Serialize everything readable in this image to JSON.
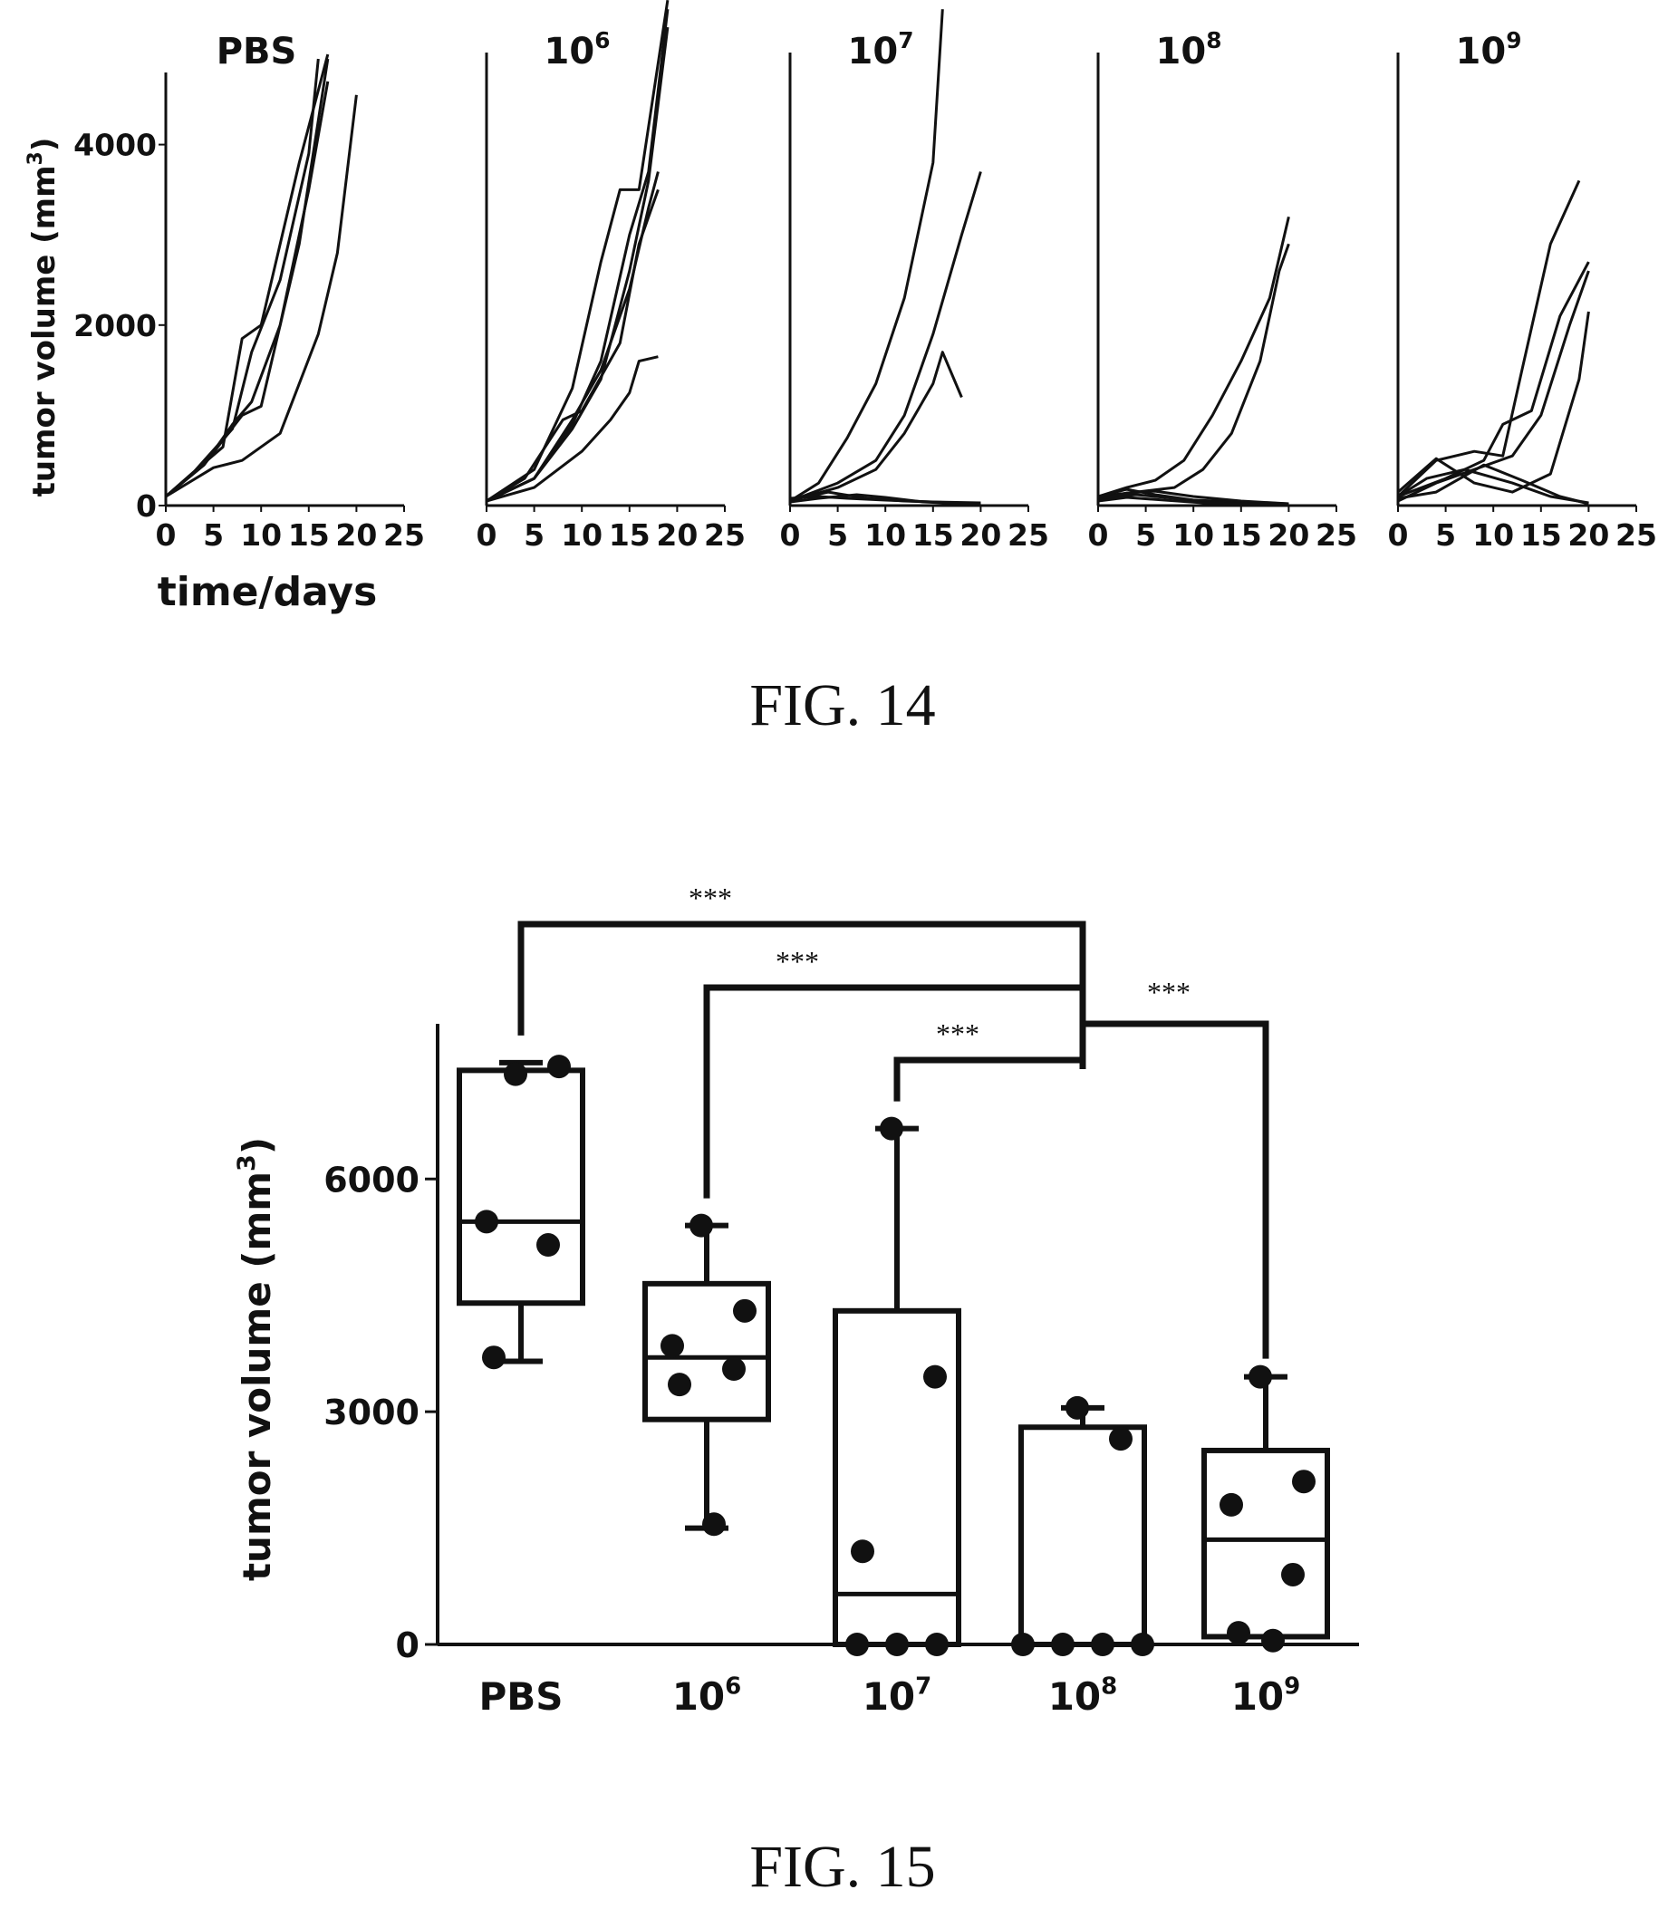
{
  "figures": [
    {
      "caption": "FIG. 14"
    },
    {
      "caption": "FIG. 15"
    }
  ],
  "colors": {
    "ink": "#111111",
    "background": "#ffffff"
  },
  "chart_data": [
    {
      "id": "fig14",
      "type": "line",
      "ylabel": "tumor volume (mm",
      "ylabel_sup": "3",
      "ylabel_close": ")",
      "xlabel": "time/days",
      "ylim": [
        0,
        5000
      ],
      "xlim": [
        0,
        25
      ],
      "xticks": [
        "0",
        "5",
        "10",
        "15",
        "20",
        "25"
      ],
      "yticks": [
        {
          "value": 0,
          "label": "0"
        },
        {
          "value": 2000,
          "label": "2000"
        },
        {
          "value": 4000,
          "label": "4000"
        }
      ],
      "grid": false,
      "panels": [
        {
          "title_base": "PBS",
          "title_sup": "",
          "series": [
            [
              [
                0,
                100
              ],
              [
                3,
                380
              ],
              [
                6,
                650
              ],
              [
                8,
                1850
              ],
              [
                10,
                2000
              ],
              [
                14,
                3800
              ],
              [
                17,
                5000
              ]
            ],
            [
              [
                0,
                100
              ],
              [
                3,
                380
              ],
              [
                7,
                850
              ],
              [
                9,
                1700
              ],
              [
                12,
                2500
              ],
              [
                15,
                3900
              ],
              [
                16,
                4950
              ]
            ],
            [
              [
                0,
                100
              ],
              [
                4,
                450
              ],
              [
                8,
                1000
              ],
              [
                10,
                1100
              ],
              [
                14,
                2900
              ],
              [
                17,
                4950
              ]
            ],
            [
              [
                0,
                100
              ],
              [
                4,
                450
              ],
              [
                7,
                900
              ],
              [
                9,
                1150
              ],
              [
                12,
                2000
              ],
              [
                15,
                3500
              ],
              [
                17,
                4700
              ]
            ],
            [
              [
                0,
                100
              ],
              [
                5,
                420
              ],
              [
                8,
                500
              ],
              [
                12,
                800
              ],
              [
                16,
                1900
              ],
              [
                18,
                2800
              ],
              [
                20,
                4550
              ]
            ]
          ]
        },
        {
          "title_base": "10",
          "title_sup": "6",
          "series": [
            [
              [
                0,
                50
              ],
              [
                5,
                400
              ],
              [
                9,
                1300
              ],
              [
                12,
                2700
              ],
              [
                14,
                3500
              ],
              [
                16,
                3500
              ],
              [
                19,
                5600
              ]
            ],
            [
              [
                0,
                50
              ],
              [
                5,
                300
              ],
              [
                9,
                900
              ],
              [
                12,
                1600
              ],
              [
                15,
                3000
              ],
              [
                17,
                3700
              ],
              [
                19,
                5500
              ]
            ],
            [
              [
                0,
                50
              ],
              [
                5,
                300
              ],
              [
                9,
                850
              ],
              [
                12,
                1400
              ],
              [
                15,
                2600
              ],
              [
                17,
                3600
              ],
              [
                19,
                5300
              ]
            ],
            [
              [
                0,
                50
              ],
              [
                5,
                300
              ],
              [
                9,
                950
              ],
              [
                12,
                1500
              ],
              [
                15,
                2400
              ],
              [
                17,
                3300
              ],
              [
                18,
                3700
              ]
            ],
            [
              [
                0,
                50
              ],
              [
                4,
                300
              ],
              [
                8,
                950
              ],
              [
                10,
                1050
              ],
              [
                14,
                1800
              ],
              [
                16,
                2900
              ],
              [
                18,
                3500
              ]
            ],
            [
              [
                0,
                50
              ],
              [
                5,
                200
              ],
              [
                10,
                600
              ],
              [
                13,
                950
              ],
              [
                15,
                1250
              ],
              [
                16,
                1600
              ],
              [
                18,
                1650
              ]
            ]
          ]
        },
        {
          "title_base": "10",
          "title_sup": "7",
          "series": [
            [
              [
                0,
                50
              ],
              [
                3,
                250
              ],
              [
                6,
                750
              ],
              [
                9,
                1350
              ],
              [
                12,
                2300
              ],
              [
                15,
                3800
              ],
              [
                16,
                5500
              ]
            ],
            [
              [
                0,
                50
              ],
              [
                5,
                250
              ],
              [
                9,
                500
              ],
              [
                12,
                1000
              ],
              [
                15,
                1900
              ],
              [
                18,
                3000
              ],
              [
                20,
                3700
              ]
            ],
            [
              [
                0,
                50
              ],
              [
                5,
                200
              ],
              [
                9,
                400
              ],
              [
                12,
                800
              ],
              [
                15,
                1350
              ],
              [
                16,
                1700
              ],
              [
                18,
                1200
              ]
            ],
            [
              [
                0,
                80
              ],
              [
                3,
                100
              ],
              [
                6,
                80
              ],
              [
                10,
                60
              ],
              [
                15,
                40
              ],
              [
                20,
                30
              ]
            ],
            [
              [
                0,
                60
              ],
              [
                4,
                150
              ],
              [
                8,
                80
              ],
              [
                12,
                50
              ],
              [
                20,
                20
              ]
            ],
            [
              [
                0,
                40
              ],
              [
                3,
                80
              ],
              [
                7,
                120
              ],
              [
                10,
                90
              ],
              [
                14,
                40
              ],
              [
                20,
                10
              ]
            ]
          ]
        },
        {
          "title_base": "10",
          "title_sup": "8",
          "series": [
            [
              [
                0,
                100
              ],
              [
                3,
                200
              ],
              [
                6,
                280
              ],
              [
                9,
                500
              ],
              [
                12,
                1000
              ],
              [
                15,
                1600
              ],
              [
                18,
                2300
              ],
              [
                20,
                3200
              ]
            ],
            [
              [
                0,
                100
              ],
              [
                4,
                150
              ],
              [
                8,
                200
              ],
              [
                11,
                400
              ],
              [
                14,
                800
              ],
              [
                17,
                1600
              ],
              [
                19,
                2600
              ],
              [
                20,
                2900
              ]
            ],
            [
              [
                0,
                100
              ],
              [
                3,
                180
              ],
              [
                6,
                120
              ],
              [
                10,
                60
              ],
              [
                15,
                40
              ],
              [
                20,
                20
              ]
            ],
            [
              [
                0,
                80
              ],
              [
                4,
                120
              ],
              [
                8,
                80
              ],
              [
                12,
                40
              ],
              [
                20,
                10
              ]
            ],
            [
              [
                0,
                60
              ],
              [
                3,
                140
              ],
              [
                6,
                160
              ],
              [
                10,
                100
              ],
              [
                15,
                50
              ],
              [
                20,
                20
              ]
            ],
            [
              [
                0,
                50
              ],
              [
                3,
                90
              ],
              [
                7,
                60
              ],
              [
                11,
                30
              ],
              [
                20,
                10
              ]
            ]
          ]
        },
        {
          "title_base": "10",
          "title_sup": "9",
          "series": [
            [
              [
                0,
                100
              ],
              [
                4,
                500
              ],
              [
                8,
                600
              ],
              [
                11,
                550
              ],
              [
                13,
                1500
              ],
              [
                16,
                2900
              ],
              [
                19,
                3600
              ]
            ],
            [
              [
                0,
                100
              ],
              [
                5,
                300
              ],
              [
                9,
                500
              ],
              [
                11,
                900
              ],
              [
                14,
                1050
              ],
              [
                17,
                2100
              ],
              [
                20,
                2700
              ]
            ],
            [
              [
                0,
                50
              ],
              [
                4,
                250
              ],
              [
                8,
                400
              ],
              [
                12,
                550
              ],
              [
                15,
                1000
              ],
              [
                18,
                2000
              ],
              [
                20,
                2600
              ]
            ],
            [
              [
                0,
                150
              ],
              [
                4,
                520
              ],
              [
                8,
                250
              ],
              [
                12,
                150
              ],
              [
                16,
                350
              ],
              [
                19,
                1400
              ],
              [
                20,
                2150
              ]
            ],
            [
              [
                0,
                100
              ],
              [
                3,
                300
              ],
              [
                7,
                400
              ],
              [
                12,
                250
              ],
              [
                16,
                100
              ],
              [
                20,
                30
              ]
            ],
            [
              [
                0,
                80
              ],
              [
                4,
                150
              ],
              [
                9,
                450
              ],
              [
                13,
                280
              ],
              [
                17,
                100
              ],
              [
                20,
                20
              ]
            ]
          ]
        }
      ]
    },
    {
      "id": "fig15",
      "type": "box",
      "ylabel": "tumor volume (mm",
      "ylabel_sup": "3",
      "ylabel_close": ")",
      "ylim": [
        0,
        8000
      ],
      "yticks": [
        {
          "value": 0,
          "label": "0"
        },
        {
          "value": 3000,
          "label": "3000"
        },
        {
          "value": 6000,
          "label": "6000"
        }
      ],
      "grid": false,
      "groups": [
        {
          "label_base": "PBS",
          "label_sup": "",
          "min": 3650,
          "q1": 4400,
          "median": 5450,
          "q3": 7400,
          "max": 7500,
          "points": [
            7350,
            7450,
            5450,
            5150,
            3700
          ]
        },
        {
          "label_base": "10",
          "label_sup": "6",
          "min": 1500,
          "q1": 2900,
          "median": 3700,
          "q3": 4650,
          "max": 5400,
          "points": [
            5400,
            4300,
            3850,
            3550,
            3350,
            1550
          ]
        },
        {
          "label_base": "10",
          "label_sup": "7",
          "min": 0,
          "q1": 0,
          "median": 650,
          "q3": 4300,
          "max": 6650,
          "points": [
            6650,
            3450,
            1200,
            0,
            0,
            0
          ]
        },
        {
          "label_base": "10",
          "label_sup": "8",
          "min": 0,
          "q1": 0,
          "median": 0,
          "q3": 2800,
          "max": 3050,
          "points": [
            3050,
            2650,
            0,
            0,
            0,
            0
          ]
        },
        {
          "label_base": "10",
          "label_sup": "9",
          "min": 0,
          "q1": 100,
          "median": 1350,
          "q3": 2500,
          "max": 3450,
          "points": [
            3450,
            2100,
            1800,
            900,
            150,
            50
          ]
        }
      ],
      "comparisons": [
        {
          "from": 0,
          "to": 3,
          "label": "***"
        },
        {
          "from": 1,
          "to": 3,
          "label": "***"
        },
        {
          "from": 2,
          "to": 3,
          "label": "***"
        },
        {
          "from": 3,
          "to": 4,
          "label": "***"
        }
      ]
    }
  ]
}
